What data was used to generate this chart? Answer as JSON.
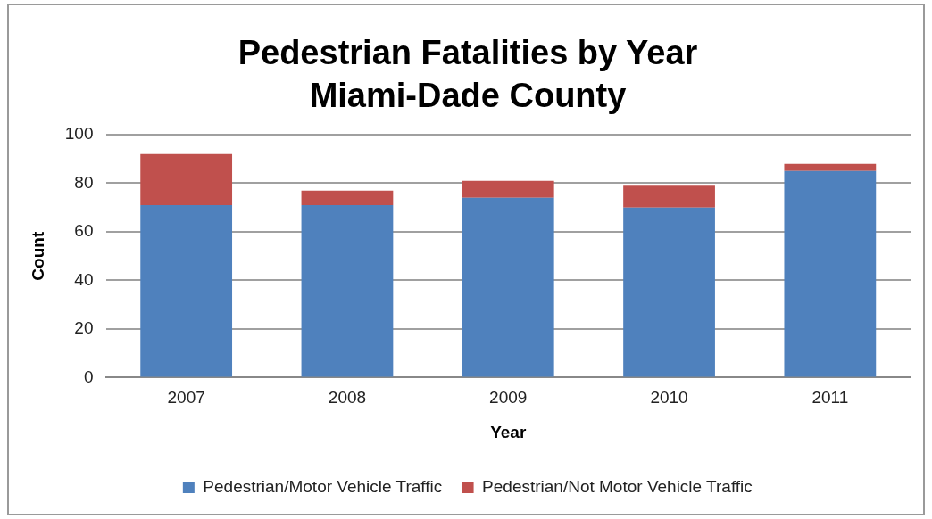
{
  "chart_data": {
    "type": "bar",
    "title": "Pedestrian Fatalities by Year\nMiami-Dade County",
    "xlabel": "Year",
    "ylabel": "Count",
    "categories": [
      "2007",
      "2008",
      "2009",
      "2010",
      "2011"
    ],
    "series": [
      {
        "name": "Pedestrian/Motor Vehicle Traffic",
        "color": "#4f81bd",
        "values": [
          71,
          71,
          74,
          70,
          85
        ]
      },
      {
        "name": "Pedestrian/Not Motor Vehicle Traffic",
        "color": "#c0504d",
        "values": [
          21,
          6,
          7,
          9,
          3
        ]
      }
    ],
    "stacked": true,
    "ylim": [
      0,
      100
    ],
    "yticks": [
      0,
      20,
      40,
      60,
      80,
      100
    ],
    "grid": "y",
    "legend": "bottom"
  }
}
